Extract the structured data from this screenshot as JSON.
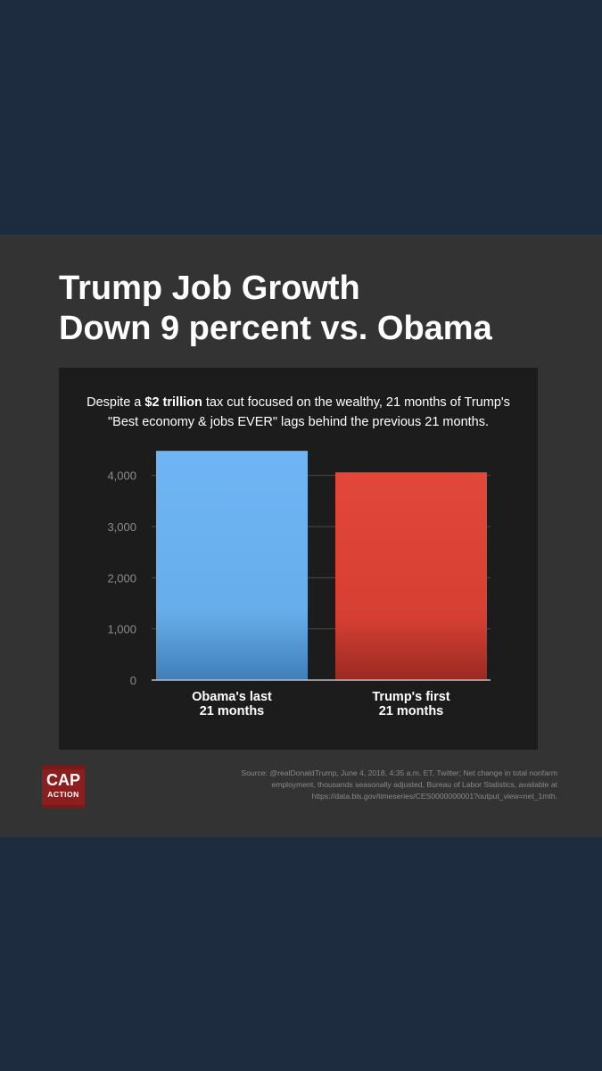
{
  "title": {
    "line1": "Trump Job Growth",
    "line2": "Down 9 percent vs. Obama"
  },
  "subtitle": {
    "prefix": "Despite a ",
    "bold": "$2 trillion",
    "line1_rest": " tax cut focused on the wealthy, 21 months of Trump's",
    "line2": "\"Best economy & jobs EVER\" lags behind the previous 21 months."
  },
  "colors": {
    "background": "#1d2d3f",
    "card": "#333333",
    "panel": "#1c1c1c",
    "obama_bar": "#6fb5f5",
    "trump_bar": "#e2473a"
  },
  "chart_data": {
    "type": "bar",
    "title": "",
    "xlabel": "",
    "ylabel": "",
    "ylim": [
      0,
      4500
    ],
    "yticks": [
      0,
      1000,
      2000,
      3000,
      4000
    ],
    "ytick_labels": [
      "0",
      "1,000",
      "2,000",
      "3,000",
      "4,000"
    ],
    "categories": [
      {
        "line1": "Obama's last",
        "line2": "21 months"
      },
      {
        "line1": "Trump's first",
        "line2": "21 months"
      }
    ],
    "values": [
      4480,
      4060
    ],
    "bar_colors": [
      "#6fb5f5",
      "#e2473a"
    ],
    "grid": true
  },
  "footer": {
    "logo_line1": "CAP",
    "logo_line2": "ACTION",
    "source_line1": "Source: @realDonaldTrump, June 4, 2018, 4:35 a.m. ET, Twitter; Net change in total nonfarm",
    "source_line2": "employment, thousands seasonally adjusted, Bureau of Labor Statistics, available at",
    "source_line3": "https://data.bls.gov/timeseries/CES0000000001?output_view=net_1mth."
  }
}
